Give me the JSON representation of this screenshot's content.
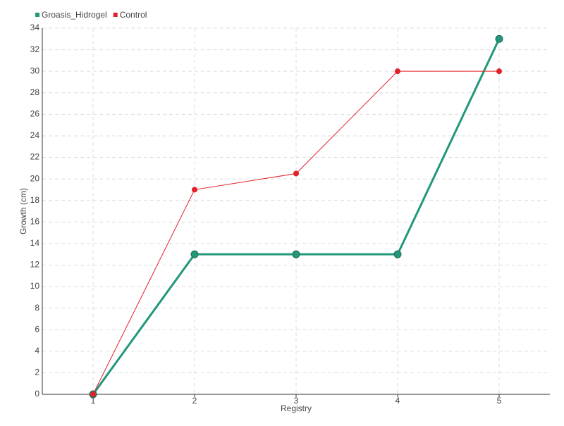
{
  "chart_data": {
    "type": "line",
    "x_label": "Registry",
    "y_label": "Growth (cm)",
    "categories": [
      "1",
      "2",
      "3",
      "4",
      "5"
    ],
    "series": [
      {
        "name": "Groasis_Hidrogel",
        "color": "#22977a",
        "values": [
          0,
          13,
          13,
          13,
          33
        ]
      },
      {
        "name": "Control",
        "color": "#e31f2b",
        "values": [
          0,
          19,
          20.5,
          30,
          30
        ]
      }
    ],
    "ylim": [
      0,
      34
    ],
    "yticks": [
      0,
      2,
      4,
      6,
      8,
      10,
      12,
      14,
      16,
      18,
      20,
      22,
      24,
      26,
      28,
      30,
      32,
      34
    ],
    "grid": true,
    "legend": "top-left"
  }
}
